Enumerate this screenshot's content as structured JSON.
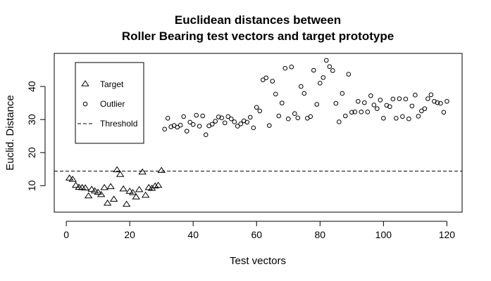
{
  "chart_data": {
    "type": "scatter",
    "title": [
      "Euclidean distances between",
      "Roller Bearing test vectors and target prototype"
    ],
    "xlabel": "Test vectors",
    "ylabel": "Euclid. Distance",
    "xlim": [
      -3.8,
      124.8
    ],
    "ylim": [
      2.0,
      50.0
    ],
    "xticks": [
      0,
      20,
      40,
      60,
      80,
      100,
      120
    ],
    "yticks": [
      10,
      20,
      30,
      40
    ],
    "grid": false,
    "legend_position": "top-left",
    "legend": [
      {
        "label": "Target",
        "marker": "triangle"
      },
      {
        "label": "Outlier",
        "marker": "circle"
      },
      {
        "label": "Threshold",
        "line": "dashed"
      }
    ],
    "threshold": 14.4,
    "series": [
      {
        "name": "Target",
        "marker": "triangle",
        "x": [
          1,
          2,
          3,
          4,
          5,
          6,
          7,
          8,
          9,
          10,
          11,
          12,
          13,
          14,
          15,
          16,
          17,
          18,
          19,
          20,
          21,
          22,
          23,
          24,
          25,
          26,
          27,
          28,
          29,
          30
        ],
        "y": [
          12.2,
          11.8,
          10.0,
          9.4,
          9.3,
          9.2,
          6.8,
          8.8,
          8.3,
          7.9,
          7.2,
          9.3,
          4.6,
          9.6,
          5.8,
          14.7,
          13.3,
          8.9,
          4.3,
          8.2,
          7.8,
          6.5,
          8.7,
          14.0,
          7.0,
          9.3,
          9.1,
          9.8,
          10.0,
          14.5
        ]
      },
      {
        "name": "Outlier",
        "marker": "circle",
        "x": [
          31,
          32,
          33,
          34,
          35,
          36,
          37,
          38,
          39,
          40,
          41,
          42,
          43,
          44,
          45,
          46,
          47,
          48,
          49,
          50,
          51,
          52,
          53,
          54,
          55,
          56,
          57,
          58,
          59,
          60,
          61,
          62,
          63,
          64,
          65,
          66,
          67,
          68,
          69,
          70,
          71,
          72,
          73,
          74,
          75,
          76,
          77,
          78,
          79,
          80,
          81,
          82,
          83,
          84,
          85,
          86,
          87,
          88,
          89,
          90,
          91,
          92,
          93,
          94,
          95,
          96,
          97,
          98,
          99,
          100,
          101,
          102,
          103,
          104,
          105,
          106,
          107,
          108,
          109,
          110,
          111,
          112,
          113,
          114,
          115,
          116,
          117,
          118,
          119,
          120
        ],
        "y": [
          27.1,
          30.4,
          27.8,
          28.2,
          27.7,
          28.3,
          30.9,
          26.5,
          29.2,
          28.5,
          31.3,
          28.0,
          31.1,
          25.4,
          28.1,
          28.6,
          29.5,
          30.8,
          30.5,
          29.0,
          30.9,
          30.2,
          29.3,
          28.0,
          28.7,
          29.6,
          29.2,
          30.7,
          27.5,
          33.7,
          32.6,
          42.0,
          42.6,
          28.2,
          41.6,
          37.7,
          31.1,
          35.0,
          45.5,
          30.2,
          45.9,
          31.8,
          30.5,
          40.0,
          37.9,
          30.4,
          30.9,
          44.9,
          34.6,
          41.0,
          42.7,
          47.9,
          46.0,
          44.8,
          34.9,
          29.3,
          37.9,
          31.1,
          43.7,
          32.2,
          32.3,
          35.5,
          32.3,
          35.1,
          32.3,
          37.2,
          34.4,
          33.3,
          35.9,
          30.4,
          34.3,
          33.9,
          36.2,
          30.4,
          36.3,
          30.9,
          36.2,
          30.2,
          34.1,
          37.4,
          31.0,
          32.6,
          33.3,
          36.3,
          37.5,
          35.5,
          35.1,
          34.9,
          32.2,
          35.5
        ]
      }
    ]
  }
}
